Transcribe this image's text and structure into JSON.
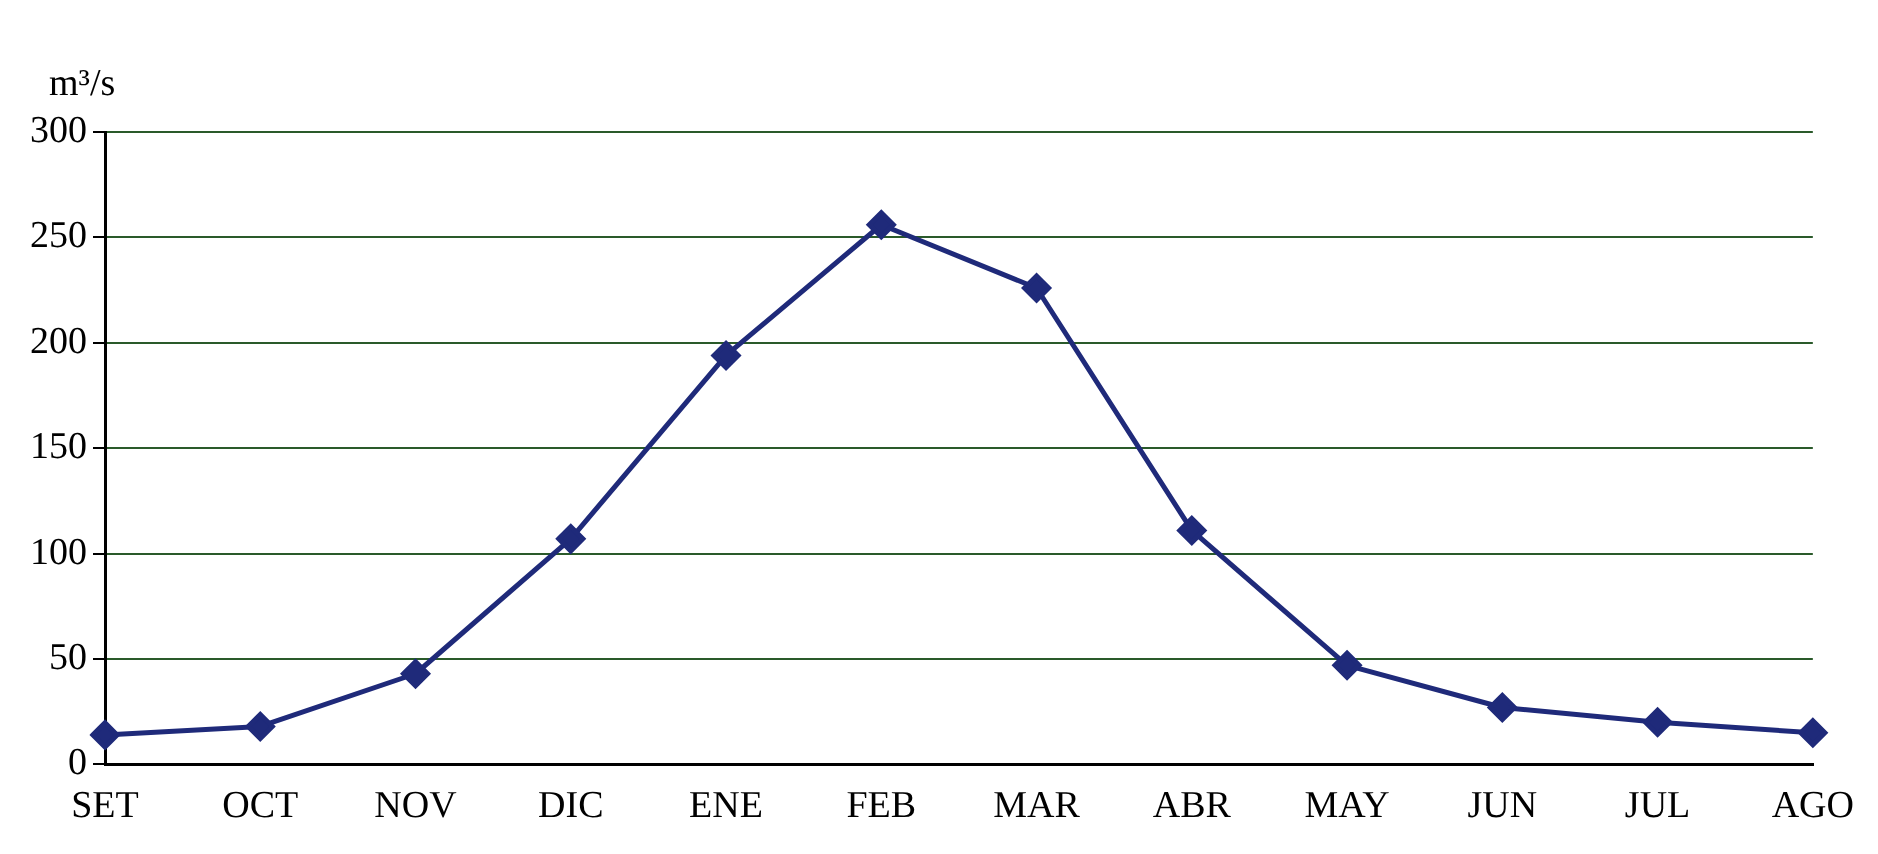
{
  "chart_data": {
    "type": "line",
    "ylabel": "m³/s",
    "categories": [
      "SET",
      "OCT",
      "NOV",
      "DIC",
      "ENE",
      "FEB",
      "MAR",
      "ABR",
      "MAY",
      "JUN",
      "JUL",
      "AGO"
    ],
    "series": [
      {
        "color": "#1f2a7a",
        "values": [
          14,
          18,
          43,
          107,
          194,
          256,
          226,
          111,
          47,
          27,
          20,
          15
        ]
      }
    ],
    "ylim": [
      0,
      300
    ],
    "yticks": [
      0,
      50,
      100,
      150,
      200,
      250,
      300
    ],
    "grid": "y",
    "marker": "diamond",
    "line_style": "solid",
    "legend": false
  }
}
